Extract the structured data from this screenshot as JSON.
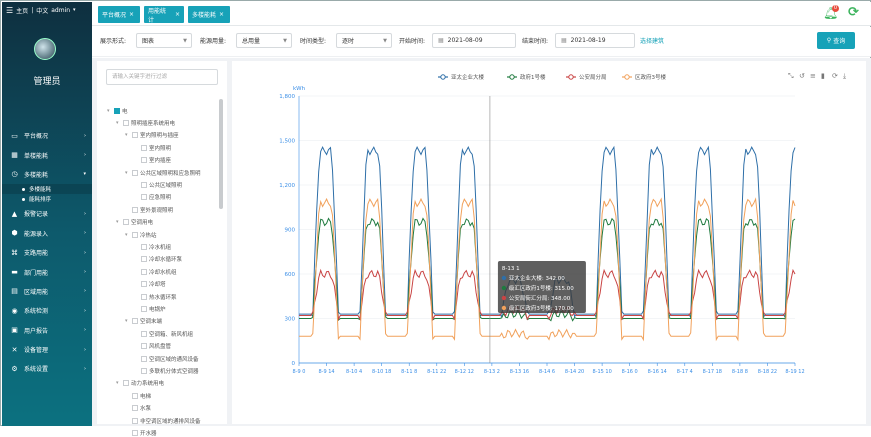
{
  "header": {
    "home": "主页",
    "lang": "中文",
    "user": "admin",
    "badge": "0"
  },
  "sidebar": {
    "admin_name": "管理员",
    "items": [
      {
        "label": "平台概况",
        "icon": "monitor-icon"
      },
      {
        "label": "单楼能耗",
        "icon": "building-icon"
      },
      {
        "label": "多楼能耗",
        "icon": "clock-icon",
        "expanded": true
      },
      {
        "label": "报警记录",
        "icon": "alarm-icon"
      },
      {
        "label": "能源录入",
        "icon": "cube-icon"
      },
      {
        "label": "支路用能",
        "icon": "branch-icon"
      },
      {
        "label": "部门用能",
        "icon": "folder-icon"
      },
      {
        "label": "区域用能",
        "icon": "grid-icon"
      },
      {
        "label": "系统检测",
        "icon": "pin-icon"
      },
      {
        "label": "用户报告",
        "icon": "report-icon"
      },
      {
        "label": "设备管理",
        "icon": "tools-icon"
      },
      {
        "label": "系统设置",
        "icon": "settings-icon"
      }
    ],
    "subitems": [
      {
        "label": "多楼能耗",
        "active": true
      },
      {
        "label": "能耗排序",
        "active": false
      }
    ]
  },
  "tabs": [
    {
      "label": "平台概况"
    },
    {
      "label": "用能统计"
    },
    {
      "label": "多楼能耗"
    }
  ],
  "filters": {
    "display_label": "展示形式:",
    "display_value": "图表",
    "energy_label": "能源用量:",
    "energy_value": "总用量",
    "time_type_label": "时间类型:",
    "time_type_value": "逐时",
    "start_label": "开始时间:",
    "start_value": "2021-08-09",
    "end_label": "结束时间:",
    "end_value": "2021-08-19",
    "select_buildings": "选择建筑",
    "query": "查询"
  },
  "tree": {
    "search_placeholder": "请输入关键字进行过滤",
    "nodes": [
      {
        "label": "电",
        "level": 0,
        "toggle": "▾",
        "checked": true
      },
      {
        "label": "照明插座系统用电",
        "level": 1,
        "toggle": "▾"
      },
      {
        "label": "室内照明与插座",
        "level": 2,
        "toggle": "▾"
      },
      {
        "label": "室内照明",
        "level": 3
      },
      {
        "label": "室内插座",
        "level": 3
      },
      {
        "label": "公共区域照明和应急照明",
        "level": 2,
        "toggle": "▾"
      },
      {
        "label": "公共区域照明",
        "level": 3
      },
      {
        "label": "应急照明",
        "level": 3
      },
      {
        "label": "室外景观照明",
        "level": 2
      },
      {
        "label": "空调用电",
        "level": 1,
        "toggle": "▾"
      },
      {
        "label": "冷热站",
        "level": 2,
        "toggle": "▾"
      },
      {
        "label": "冷水机组",
        "level": 3
      },
      {
        "label": "冷却水循环泵",
        "level": 3
      },
      {
        "label": "冷却水机组",
        "level": 3
      },
      {
        "label": "冷却塔",
        "level": 3
      },
      {
        "label": "热水循环泵",
        "level": 3
      },
      {
        "label": "电锅炉",
        "level": 3
      },
      {
        "label": "空调末端",
        "level": 2,
        "toggle": "▾"
      },
      {
        "label": "空调箱、新风机组",
        "level": 3
      },
      {
        "label": "风机盘管",
        "level": 3
      },
      {
        "label": "空调区域的通风设备",
        "level": 3
      },
      {
        "label": "多联机分体式空调器",
        "level": 3
      },
      {
        "label": "动力系统用电",
        "level": 1,
        "toggle": "▾"
      },
      {
        "label": "电梯",
        "level": 2
      },
      {
        "label": "水泵",
        "level": 2
      },
      {
        "label": "非空调区域的通排风设备",
        "level": 2
      },
      {
        "label": "开水器",
        "level": 2
      }
    ]
  },
  "toolbox": [
    "zoom-icon",
    "zoom-reset-icon",
    "line-type-icon",
    "bar-type-icon",
    "restore-icon",
    "download-icon"
  ],
  "chart_data": {
    "type": "line",
    "ylabel": "kWh",
    "ylim": [
      0,
      1800
    ],
    "yticks": [
      0,
      300,
      600,
      900,
      1200,
      1500,
      1800
    ],
    "xticks": [
      "8-9 0",
      "8-9 14",
      "8-10 4",
      "8-10 18",
      "8-11 8",
      "8-11 22",
      "8-12 12",
      "8-13 2",
      "8-13 16",
      "8-14 6",
      "8-14 20",
      "8-15 10",
      "8-16 0",
      "8-16 14",
      "8-17 4",
      "8-17 18",
      "8-18 8",
      "8-18 22",
      "8-19 12"
    ],
    "tooltip": {
      "title": "8-13 1",
      "rows": [
        "亚太企业大楼: 342.00",
        "级汇区政府1号楼: 315.00",
        "公安局街汇分局: 348.00",
        "级汇区政府3号楼: 170.00"
      ]
    },
    "series": [
      {
        "name": "亚太企业大楼",
        "color": "#2e6fa8",
        "day_peak": 1430,
        "night": 330,
        "weekend_peak": 560
      },
      {
        "name": "政府1号楼",
        "color": "#1f7a3f",
        "day_peak": 950,
        "night": 300,
        "weekend_peak": 330
      },
      {
        "name": "公安局分局",
        "color": "#c94444",
        "day_peak": 600,
        "night": 320,
        "weekend_peak": 360
      },
      {
        "name": "区政府3号楼",
        "color": "#f1a15b",
        "day_peak": 1080,
        "night": 180,
        "weekend_peak": 200
      }
    ]
  }
}
